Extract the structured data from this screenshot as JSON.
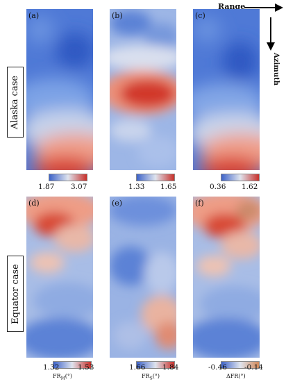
{
  "rows": [
    {
      "case_label": "Alaska case"
    },
    {
      "case_label": "Equator case"
    }
  ],
  "directions": {
    "range": "Range",
    "azimuth": "Azimuth"
  },
  "panels": [
    {
      "label": "(a)",
      "cmin": "1.87",
      "cmax": "3.07",
      "xlabel": ""
    },
    {
      "label": "(b)",
      "cmin": "1.33",
      "cmax": "1.65",
      "xlabel": ""
    },
    {
      "label": "(c)",
      "cmin": "0.36",
      "cmax": "1.62",
      "xlabel": ""
    },
    {
      "label": "(d)",
      "cmin": "1.32",
      "cmax": "1.53",
      "xlabel": "FR",
      "xsub": "M",
      "xunit": "(°)"
    },
    {
      "label": "(e)",
      "cmin": "1.66",
      "cmax": "1.84",
      "xlabel": "FR",
      "xsub": "S",
      "xunit": "(°)"
    },
    {
      "label": "(f)",
      "cmin": "-0.46",
      "cmax": "-0.14",
      "xlabel": "ΔFR",
      "xsub": "",
      "xunit": "(°)"
    }
  ],
  "colors": {
    "low": "#3d63c9",
    "mid": "#dfe4ee",
    "high": "#c8302a"
  }
}
